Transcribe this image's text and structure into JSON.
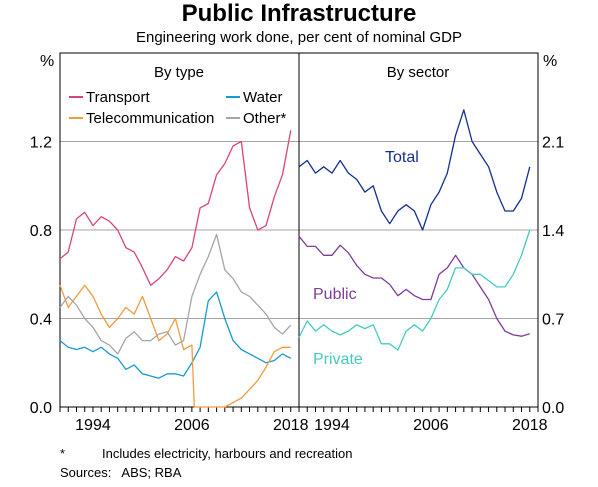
{
  "chart_data": {
    "type": "line",
    "title": "Public Infrastructure",
    "subtitle": "Engineering work done, per cent of nominal GDP",
    "left_axis_unit": "%",
    "right_axis_unit": "%",
    "xlim": [
      1990,
      2019
    ],
    "x_tick_labels": [
      "1994",
      "2006",
      "2018"
    ],
    "x_tick_values": [
      1994,
      2006,
      2018
    ],
    "footnote_marker": "*",
    "footnote": "Includes electricity, harbours and recreation",
    "sources": "Sources:   ABS; RBA",
    "colors": {
      "Transport": "#d9437e",
      "Water": "#179ad1",
      "Telecommunication": "#f29b3c",
      "Other*": "#a6a6a6",
      "Total": "#162f8f",
      "Public": "#7d3c98",
      "Private": "#45cbc0"
    },
    "panels": [
      {
        "title": "By type",
        "ylim": [
          0,
          1.6
        ],
        "y_ticks": [
          "0.0",
          "0.4",
          "0.8",
          "1.2"
        ],
        "legend_position": "top",
        "series": [
          {
            "name": "Transport",
            "x": [
              1990,
              1991,
              1992,
              1993,
              1994,
              1995,
              1996,
              1997,
              1998,
              1999,
              2000,
              2001,
              2002,
              2003,
              2004,
              2005,
              2006,
              2007,
              2008,
              2009,
              2010,
              2011,
              2012,
              2013,
              2014,
              2015,
              2016,
              2017,
              2018
            ],
            "values": [
              0.67,
              0.7,
              0.85,
              0.88,
              0.82,
              0.86,
              0.84,
              0.8,
              0.72,
              0.7,
              0.63,
              0.55,
              0.58,
              0.62,
              0.68,
              0.66,
              0.72,
              0.9,
              0.92,
              1.05,
              1.1,
              1.18,
              1.2,
              0.9,
              0.8,
              0.82,
              0.95,
              1.05,
              1.25
            ]
          },
          {
            "name": "Water",
            "x": [
              1990,
              1991,
              1992,
              1993,
              1994,
              1995,
              1996,
              1997,
              1998,
              1999,
              2000,
              2001,
              2002,
              2003,
              2004,
              2005,
              2006,
              2007,
              2008,
              2009,
              2010,
              2011,
              2012,
              2013,
              2014,
              2015,
              2016,
              2017,
              2018
            ],
            "values": [
              0.3,
              0.27,
              0.26,
              0.27,
              0.25,
              0.27,
              0.24,
              0.22,
              0.17,
              0.19,
              0.15,
              0.14,
              0.13,
              0.15,
              0.15,
              0.14,
              0.2,
              0.27,
              0.48,
              0.52,
              0.4,
              0.3,
              0.26,
              0.24,
              0.22,
              0.2,
              0.21,
              0.24,
              0.22
            ]
          },
          {
            "name": "Telecommunication",
            "x": [
              1990,
              1991,
              1992,
              1993,
              1994,
              1995,
              1996,
              1997,
              1998,
              1999,
              2000,
              2001,
              2002,
              2003,
              2004,
              2005,
              2006,
              2006.3,
              2007,
              2008,
              2009,
              2010,
              2011,
              2012,
              2013,
              2014,
              2015,
              2016,
              2017,
              2018
            ],
            "values": [
              0.55,
              0.45,
              0.5,
              0.55,
              0.5,
              0.42,
              0.36,
              0.4,
              0.45,
              0.42,
              0.5,
              0.4,
              0.3,
              0.33,
              0.4,
              0.26,
              0.28,
              0.0,
              0.0,
              0.0,
              0.0,
              0.0,
              0.02,
              0.04,
              0.08,
              0.12,
              0.18,
              0.25,
              0.27,
              0.27
            ]
          },
          {
            "name": "Other*",
            "x": [
              1990,
              1991,
              1992,
              1993,
              1994,
              1995,
              1996,
              1997,
              1998,
              1999,
              2000,
              2001,
              2002,
              2003,
              2004,
              2005,
              2006,
              2007,
              2008,
              2009,
              2010,
              2011,
              2012,
              2013,
              2014,
              2015,
              2016,
              2017,
              2018
            ],
            "values": [
              0.45,
              0.5,
              0.46,
              0.4,
              0.36,
              0.3,
              0.28,
              0.24,
              0.31,
              0.34,
              0.3,
              0.3,
              0.33,
              0.34,
              0.28,
              0.3,
              0.5,
              0.6,
              0.68,
              0.78,
              0.62,
              0.58,
              0.52,
              0.5,
              0.46,
              0.42,
              0.36,
              0.33,
              0.37
            ]
          }
        ]
      },
      {
        "title": "By sector",
        "ylim": [
          0,
          2.8
        ],
        "y_ticks": [
          "0.0",
          "0.7",
          "1.4",
          "2.1"
        ],
        "series": [
          {
            "name": "Total",
            "x": [
              1990,
              1991,
              1992,
              1993,
              1994,
              1995,
              1996,
              1997,
              1998,
              1999,
              2000,
              2001,
              2002,
              2003,
              2004,
              2005,
              2006,
              2007,
              2008,
              2009,
              2010,
              2011,
              2012,
              2013,
              2014,
              2015,
              2016,
              2017,
              2018
            ],
            "values": [
              1.9,
              1.95,
              1.85,
              1.9,
              1.85,
              1.95,
              1.85,
              1.8,
              1.7,
              1.75,
              1.55,
              1.45,
              1.55,
              1.6,
              1.55,
              1.4,
              1.6,
              1.7,
              1.85,
              2.15,
              2.35,
              2.1,
              2.0,
              1.9,
              1.7,
              1.55,
              1.55,
              1.65,
              1.9
            ]
          },
          {
            "name": "Public",
            "x": [
              1990,
              1991,
              1992,
              1993,
              1994,
              1995,
              1996,
              1997,
              1998,
              1999,
              2000,
              2001,
              2002,
              2003,
              2004,
              2005,
              2006,
              2007,
              2008,
              2009,
              2010,
              2011,
              2012,
              2013,
              2014,
              2015,
              2016,
              2017,
              2018
            ],
            "values": [
              1.35,
              1.27,
              1.27,
              1.2,
              1.2,
              1.28,
              1.22,
              1.12,
              1.05,
              1.02,
              1.02,
              0.97,
              0.88,
              0.93,
              0.88,
              0.85,
              0.85,
              1.05,
              1.1,
              1.2,
              1.1,
              1.05,
              0.95,
              0.85,
              0.7,
              0.6,
              0.57,
              0.56,
              0.58
            ]
          },
          {
            "name": "Private",
            "x": [
              1990,
              1991,
              1992,
              1993,
              1994,
              1995,
              1996,
              1997,
              1998,
              1999,
              2000,
              2001,
              2002,
              2003,
              2004,
              2005,
              2006,
              2007,
              2008,
              2009,
              2010,
              2011,
              2012,
              2013,
              2014,
              2015,
              2016,
              2017,
              2018
            ],
            "values": [
              0.55,
              0.68,
              0.6,
              0.65,
              0.6,
              0.57,
              0.6,
              0.65,
              0.62,
              0.65,
              0.5,
              0.5,
              0.45,
              0.6,
              0.65,
              0.6,
              0.7,
              0.85,
              0.93,
              1.1,
              1.1,
              1.05,
              1.05,
              1.0,
              0.95,
              0.95,
              1.05,
              1.2,
              1.4
            ]
          }
        ]
      }
    ]
  }
}
